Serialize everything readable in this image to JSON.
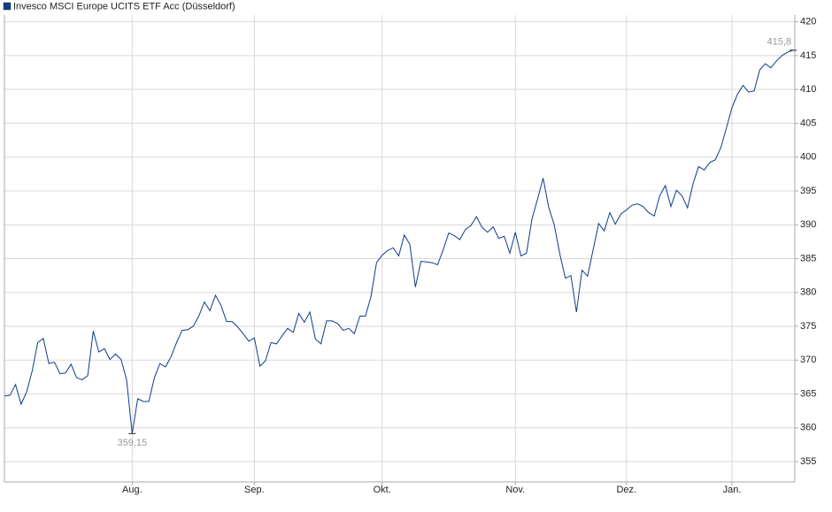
{
  "chart_data": {
    "type": "line",
    "categories": [
      null,
      null,
      null,
      null,
      null,
      null,
      null,
      null,
      null,
      null,
      null,
      null,
      null,
      null,
      null,
      null,
      null,
      null,
      null,
      null,
      null,
      null,
      null,
      "Aug.",
      null,
      null,
      null,
      null,
      null,
      null,
      null,
      null,
      null,
      null,
      null,
      null,
      null,
      null,
      null,
      null,
      null,
      null,
      null,
      null,
      null,
      "Sep.",
      null,
      null,
      null,
      null,
      null,
      null,
      null,
      null,
      null,
      null,
      null,
      null,
      null,
      null,
      null,
      null,
      null,
      null,
      null,
      null,
      null,
      null,
      "Okt.",
      null,
      null,
      null,
      null,
      null,
      null,
      null,
      null,
      null,
      null,
      null,
      null,
      null,
      null,
      null,
      null,
      null,
      null,
      null,
      null,
      null,
      null,
      null,
      "Nov.",
      null,
      null,
      null,
      null,
      null,
      null,
      null,
      null,
      null,
      null,
      null,
      null,
      null,
      null,
      null,
      null,
      null,
      null,
      null,
      "Dez.",
      null,
      null,
      null,
      null,
      null,
      null,
      null,
      null,
      null,
      null,
      null,
      null,
      null,
      null,
      null,
      null,
      null,
      null,
      "Jan.",
      null,
      null,
      null,
      null,
      null,
      null,
      null,
      null,
      null,
      null,
      null
    ],
    "series": [
      {
        "name": "Invesco MSCI Europe UCITS ETF Acc (Düsseldorf)",
        "color": "#0f3c8c",
        "values": [
          364.7,
          364.8,
          366.4,
          363.5,
          365.3,
          368.4,
          372.6,
          373.2,
          369.5,
          369.7,
          368.0,
          368.1,
          369.4,
          367.4,
          367.1,
          367.7,
          374.3,
          371.2,
          371.7,
          370.1,
          370.9,
          370.1,
          367.1,
          359.15,
          364.3,
          363.9,
          363.9,
          367.4,
          369.5,
          369.0,
          370.5,
          372.6,
          374.4,
          374.5,
          375.0,
          376.5,
          378.6,
          377.3,
          379.6,
          378.1,
          375.7,
          375.7,
          374.9,
          373.9,
          372.8,
          373.3,
          369.1,
          369.9,
          372.6,
          372.4,
          373.6,
          374.7,
          374.1,
          376.9,
          375.6,
          377.1,
          373.1,
          372.4,
          375.8,
          375.8,
          375.4,
          374.4,
          374.7,
          373.9,
          376.5,
          376.5,
          379.4,
          384.4,
          385.5,
          386.2,
          386.6,
          385.4,
          388.5,
          387.1,
          380.8,
          384.6,
          384.5,
          384.4,
          384.1,
          386.3,
          388.8,
          388.4,
          387.8,
          389.3,
          389.9,
          391.2,
          389.6,
          388.9,
          389.7,
          388.0,
          388.3,
          385.8,
          388.9,
          385.4,
          385.8,
          390.9,
          393.8,
          396.9,
          392.6,
          390.0,
          385.7,
          382.1,
          382.5,
          377.1,
          383.3,
          382.4,
          386.3,
          390.2,
          389.1,
          391.8,
          390.1,
          391.6,
          392.2,
          392.9,
          393.1,
          392.7,
          391.8,
          391.3,
          394.3,
          395.8,
          392.7,
          395.1,
          394.3,
          392.5,
          396.1,
          398.6,
          398.1,
          399.2,
          399.6,
          401.4,
          404.3,
          407.3,
          409.3,
          410.6,
          409.6,
          409.8,
          412.9,
          413.8,
          413.2,
          414.2,
          415.0,
          415.5,
          415.8
        ]
      }
    ],
    "max_label": "415,8",
    "min_label": "359,15",
    "ylim": [
      352,
      421
    ],
    "yticks": [
      355,
      360,
      365,
      370,
      375,
      380,
      385,
      390,
      395,
      400,
      405,
      410,
      415,
      420
    ],
    "grid": true
  }
}
